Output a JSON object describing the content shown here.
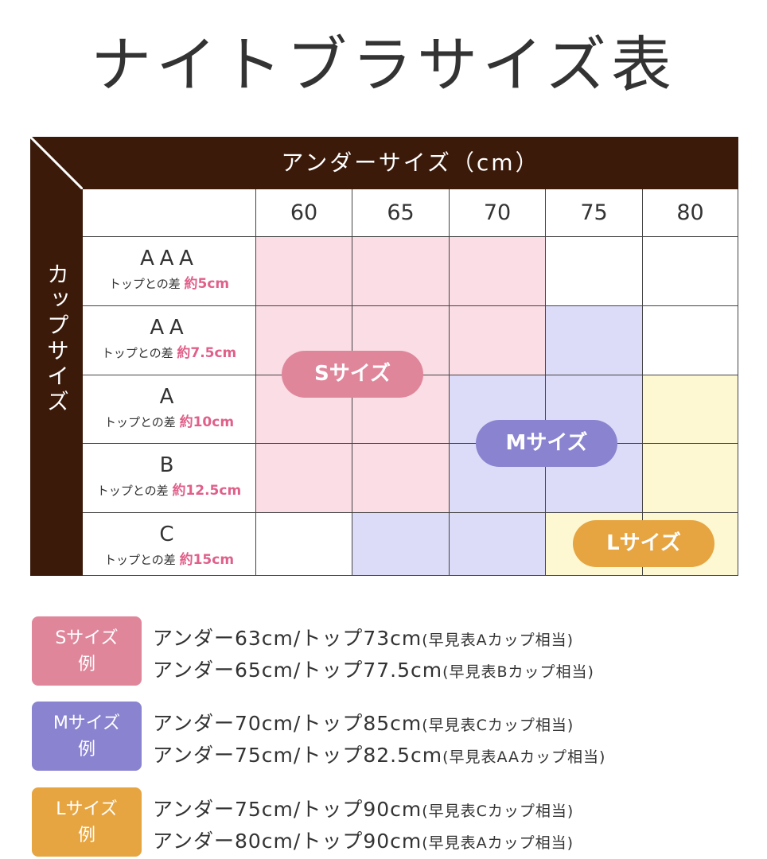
{
  "title": "ナイトブラサイズ表",
  "table": {
    "header": "アンダーサイズ（cm）",
    "side_label": "カップサイズ",
    "columns": [
      "60",
      "65",
      "70",
      "75",
      "80"
    ],
    "diff_prefix": "トップとの差",
    "rows": [
      {
        "cup": "AAA",
        "diff": "約5cm",
        "cells": [
          "S",
          "S",
          "S",
          "none",
          "none"
        ]
      },
      {
        "cup": "AA",
        "diff": "約7.5cm",
        "cells": [
          "S",
          "S",
          "S",
          "M",
          "none"
        ]
      },
      {
        "cup": "A",
        "diff": "約10cm",
        "cells": [
          "S",
          "S",
          "M",
          "M",
          "L"
        ]
      },
      {
        "cup": "B",
        "diff": "約12.5cm",
        "cells": [
          "S",
          "S",
          "M",
          "M",
          "L"
        ]
      },
      {
        "cup": "C",
        "diff": "約15cm",
        "cells": [
          "none",
          "M",
          "M",
          "L",
          "L"
        ]
      }
    ],
    "pills": {
      "S": "Sサイズ",
      "M": "Mサイズ",
      "L": "Lサイズ"
    }
  },
  "colors": {
    "brown": "#3b1a0a",
    "S_fill": "#fbdde5",
    "M_fill": "#dcdcf8",
    "L_fill": "#fdf8d2",
    "none": "#ffffff",
    "S": "#e0869b",
    "M": "#8a84d0",
    "L": "#e6a540"
  },
  "examples": [
    {
      "badge": "Sサイズ",
      "badge2": "例",
      "lines": [
        {
          "text": "アンダー63cm/トップ73cm",
          "note": "(早見表Aカップ相当)"
        },
        {
          "text": "アンダー65cm/トップ77.5cm",
          "note": "(早見表Bカップ相当)"
        }
      ]
    },
    {
      "badge": "Mサイズ",
      "badge2": "例",
      "lines": [
        {
          "text": "アンダー70cm/トップ85cm",
          "note": "(早見表Cカップ相当)"
        },
        {
          "text": "アンダー75cm/トップ82.5cm",
          "note": "(早見表AAカップ相当)"
        }
      ]
    },
    {
      "badge": "Lサイズ",
      "badge2": "例",
      "lines": [
        {
          "text": "アンダー75cm/トップ90cm",
          "note": "(早見表Cカップ相当)"
        },
        {
          "text": "アンダー80cm/トップ90cm",
          "note": "(早見表Aカップ相当)"
        }
      ]
    }
  ]
}
